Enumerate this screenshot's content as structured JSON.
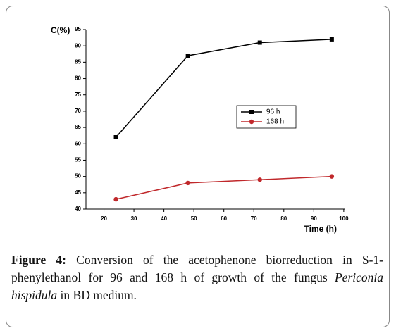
{
  "chart_data": {
    "type": "line",
    "y_label": "C(%)",
    "x_label": "Time (h)",
    "x": [
      24,
      48,
      72,
      96
    ],
    "series": [
      {
        "name": "96 h",
        "color": "#000000",
        "marker": "square",
        "values": [
          62,
          87,
          91,
          92
        ]
      },
      {
        "name": "168 h",
        "color": "#c0282b",
        "marker": "circle",
        "values": [
          43,
          48,
          49,
          50
        ]
      }
    ],
    "xlim": [
      14,
      100.5
    ],
    "xticks": [
      20,
      30,
      40,
      50,
      60,
      70,
      80,
      90,
      100
    ],
    "ylim": [
      40,
      95
    ],
    "yticks": [
      40,
      45,
      50,
      55,
      60,
      65,
      70,
      75,
      80,
      85,
      90,
      95
    ],
    "grid": false
  },
  "caption": {
    "label": "Figure 4:",
    "text_1": " Conversion of the acetophenone biorreduction in S-1-phenylethanol for 96 and 168 h of growth of the fungus ",
    "italic": "Periconia hispidula",
    "text_2": " in BD medium."
  }
}
